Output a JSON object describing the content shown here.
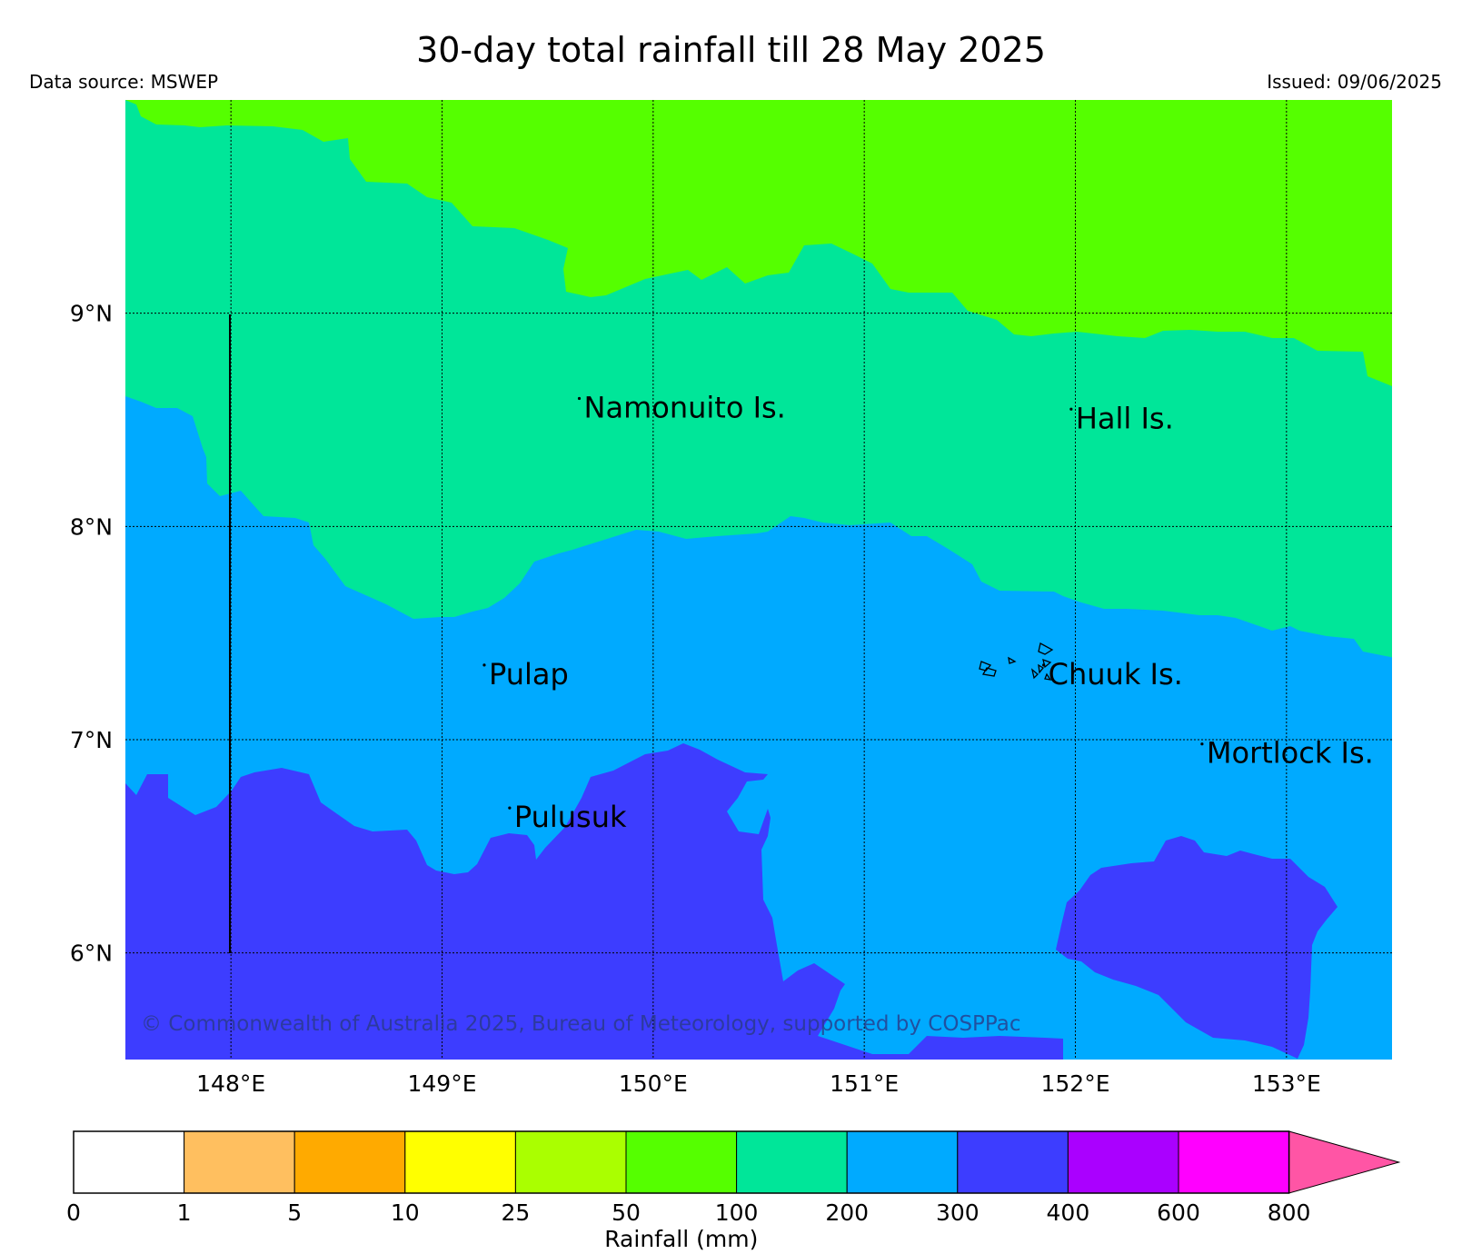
{
  "title": "30-day total rainfall till 28 May 2025",
  "data_source": "Data source: MSWEP",
  "issued": "Issued: 09/06/2025",
  "copyright": "© Commonwealth of Australia 2025, Bureau of Meteorology, supported by COSPPac",
  "map": {
    "lon_range": [
      147.5,
      153.5
    ],
    "lat_range": [
      5.5,
      10.0
    ],
    "lon_ticks": [
      {
        "value": 148,
        "label": "148°E"
      },
      {
        "value": 149,
        "label": "149°E"
      },
      {
        "value": 150,
        "label": "150°E"
      },
      {
        "value": 151,
        "label": "151°E"
      },
      {
        "value": 152,
        "label": "152°E"
      },
      {
        "value": 153,
        "label": "153°E"
      }
    ],
    "lat_ticks": [
      {
        "value": 9,
        "label": "9°N"
      },
      {
        "value": 8,
        "label": "8°N"
      },
      {
        "value": 7,
        "label": "7°N"
      },
      {
        "value": 6,
        "label": "6°N"
      }
    ],
    "grid": true,
    "places": [
      {
        "name": "Namonuito Is.",
        "lon": 149.65,
        "lat": 8.6
      },
      {
        "name": "Hall Is.",
        "lon": 151.98,
        "lat": 8.55
      },
      {
        "name": "Pulap",
        "lon": 149.2,
        "lat": 7.35
      },
      {
        "name": "Chuuk Is.",
        "lon": 151.85,
        "lat": 7.35
      },
      {
        "name": "Mortlock Is.",
        "lon": 152.6,
        "lat": 6.98
      },
      {
        "name": "Pulusuk",
        "lon": 149.32,
        "lat": 6.68
      }
    ]
  },
  "legend": {
    "label": "Rainfall (mm)",
    "boundaries": [
      "0",
      "1",
      "5",
      "10",
      "25",
      "50",
      "100",
      "200",
      "300",
      "400",
      "600",
      "800"
    ],
    "colors": [
      "#ffffff",
      "#ffbf5f",
      "#ffaa00",
      "#ffff00",
      "#aaff00",
      "#55ff00",
      "#00e699",
      "#00aaff",
      "#3d3dff",
      "#aa00ff",
      "#ff00ff",
      "#ff55a5"
    ],
    "extend": "max"
  },
  "zone_colors": {
    "50-100": "#55ff00",
    "100-200": "#00e699",
    "200-300": "#00aaff",
    "300-400": "#3d3dff"
  }
}
